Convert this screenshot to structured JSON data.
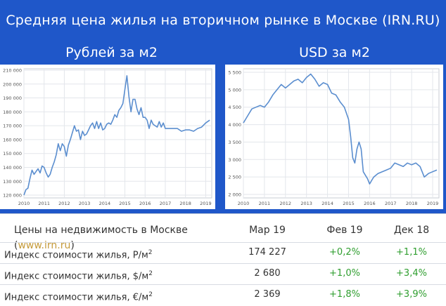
{
  "banner": {
    "title": "Средняя цена жилья на вторичном рынке в Москве (IRN.RU)"
  },
  "chart_data": [
    {
      "type": "line",
      "title": "Рублей за м2",
      "color": "#5b8ecf",
      "x_ticks": [
        "2010",
        "2011",
        "2012",
        "2013",
        "2014",
        "2015",
        "2016",
        "2017",
        "2018",
        "2019"
      ],
      "y_ticks": [
        "120 000",
        "130 000",
        "140 000",
        "150 000",
        "160 000",
        "170 000",
        "180 000",
        "190 000",
        "200 000",
        "210 000"
      ],
      "ylim": [
        118000,
        211000
      ],
      "xlim": [
        2010.0,
        2019.3
      ],
      "grid": true,
      "x": [
        2010.0,
        2010.1,
        2010.2,
        2010.3,
        2010.4,
        2010.5,
        2010.6,
        2010.7,
        2010.8,
        2010.9,
        2011.0,
        2011.1,
        2011.2,
        2011.3,
        2011.4,
        2011.5,
        2011.6,
        2011.7,
        2011.8,
        2011.9,
        2012.0,
        2012.1,
        2012.2,
        2012.3,
        2012.4,
        2012.5,
        2012.6,
        2012.7,
        2012.8,
        2012.9,
        2013.0,
        2013.1,
        2013.2,
        2013.3,
        2013.4,
        2013.5,
        2013.6,
        2013.7,
        2013.8,
        2013.9,
        2014.0,
        2014.1,
        2014.2,
        2014.3,
        2014.4,
        2014.5,
        2014.6,
        2014.7,
        2014.8,
        2014.9,
        2015.0,
        2015.1,
        2015.2,
        2015.3,
        2015.4,
        2015.5,
        2015.6,
        2015.7,
        2015.8,
        2015.9,
        2016.0,
        2016.1,
        2016.2,
        2016.3,
        2016.4,
        2016.5,
        2016.6,
        2016.7,
        2016.8,
        2016.9,
        2017.0,
        2017.2,
        2017.4,
        2017.6,
        2017.8,
        2018.0,
        2018.2,
        2018.4,
        2018.6,
        2018.8,
        2019.0,
        2019.2
      ],
      "y": [
        120000,
        124000,
        125000,
        132000,
        138000,
        135000,
        137000,
        139000,
        136000,
        141000,
        140000,
        136000,
        133000,
        135000,
        140000,
        144000,
        149000,
        157000,
        152000,
        157000,
        155000,
        148000,
        156000,
        160000,
        165000,
        170000,
        166000,
        167000,
        160000,
        166000,
        163000,
        164000,
        167000,
        170000,
        172000,
        168000,
        173000,
        168000,
        172000,
        167000,
        168000,
        171000,
        172000,
        171000,
        174000,
        178000,
        176000,
        181000,
        183000,
        186000,
        196000,
        206000,
        191000,
        180000,
        189000,
        189000,
        182000,
        178000,
        183000,
        176000,
        176000,
        174000,
        168000,
        174000,
        171000,
        170000,
        169000,
        173000,
        169000,
        172000,
        168000,
        168000,
        168000,
        168000,
        166000,
        167000,
        167000,
        166000,
        168000,
        169000,
        172000,
        174000
      ]
    },
    {
      "type": "line",
      "title": "USD за м2",
      "color": "#5b8ecf",
      "x_ticks": [
        "2010",
        "2011",
        "2012",
        "2013",
        "2014",
        "2015",
        "2016",
        "2017",
        "2018",
        "2019"
      ],
      "y_ticks": [
        "2 000",
        "2 500",
        "3 000",
        "3 500",
        "4 000",
        "4 500",
        "5 000",
        "5 500"
      ],
      "ylim": [
        1900,
        5600
      ],
      "xlim": [
        2010.0,
        2019.3
      ],
      "grid": true,
      "x": [
        2010.0,
        2010.2,
        2010.4,
        2010.6,
        2010.8,
        2011.0,
        2011.2,
        2011.4,
        2011.6,
        2011.8,
        2012.0,
        2012.2,
        2012.4,
        2012.6,
        2012.8,
        2013.0,
        2013.2,
        2013.4,
        2013.6,
        2013.8,
        2014.0,
        2014.2,
        2014.4,
        2014.6,
        2014.8,
        2015.0,
        2015.1,
        2015.2,
        2015.3,
        2015.4,
        2015.5,
        2015.6,
        2015.7,
        2015.8,
        2015.9,
        2016.0,
        2016.1,
        2016.2,
        2016.4,
        2016.6,
        2016.8,
        2017.0,
        2017.2,
        2017.4,
        2017.6,
        2017.8,
        2018.0,
        2018.2,
        2018.4,
        2018.6,
        2018.8,
        2019.0,
        2019.2
      ],
      "y": [
        4050,
        4250,
        4450,
        4500,
        4550,
        4500,
        4650,
        4850,
        5000,
        5150,
        5050,
        5150,
        5250,
        5300,
        5200,
        5350,
        5450,
        5300,
        5100,
        5200,
        5150,
        4900,
        4850,
        4650,
        4500,
        4150,
        3650,
        3050,
        2900,
        3300,
        3500,
        3300,
        2650,
        2550,
        2450,
        2300,
        2400,
        2500,
        2600,
        2650,
        2700,
        2750,
        2900,
        2850,
        2800,
        2900,
        2850,
        2900,
        2800,
        2500,
        2600,
        2650,
        2700
      ]
    }
  ],
  "table": {
    "title": "Цены на недвижимость в Москве (",
    "site": "www.irn.ru",
    "title_end": ")",
    "columns": [
      "Мар 19",
      "Фев 19",
      "Дек 18"
    ],
    "rows": [
      {
        "name": "Индекс стоимости жилья, Р/м",
        "sup": "2",
        "v1": "174 227",
        "v2": "+0,2%",
        "v3": "+1,1%"
      },
      {
        "name": "Индекс стоимости жилья, $/м",
        "sup": "2",
        "v1": "2 680",
        "v2": "+1,0%",
        "v3": "+3,4%"
      },
      {
        "name": "Индекс стоимости жилья, €/м",
        "sup": "2",
        "v1": "2 369",
        "v2": "+1,8%",
        "v3": "+3,9%"
      }
    ]
  }
}
